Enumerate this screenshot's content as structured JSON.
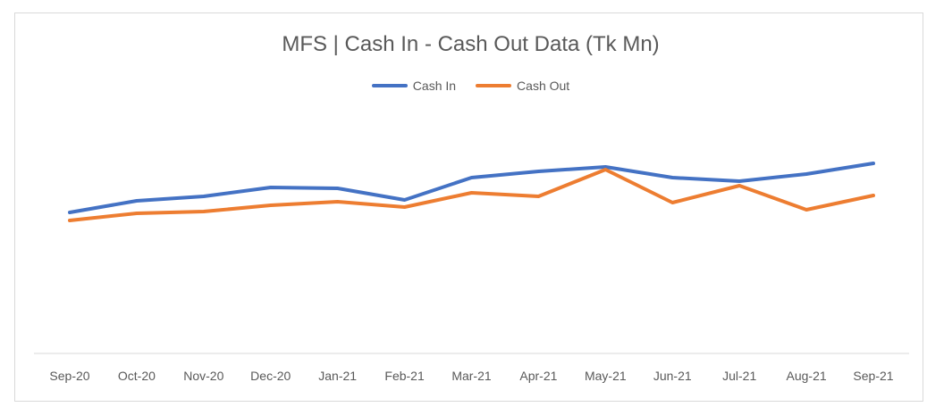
{
  "chart_data": {
    "type": "line",
    "title": "MFS | Cash In - Cash Out Data (Tk Mn)",
    "categories": [
      "Sep-20",
      "Oct-20",
      "Nov-20",
      "Dec-20",
      "Jan-21",
      "Feb-21",
      "Mar-21",
      "Apr-21",
      "May-21",
      "Jun-21",
      "Jul-21",
      "Aug-21",
      "Sep-21"
    ],
    "series": [
      {
        "name": "Cash In",
        "color": "#4472C4",
        "values": [
          238,
          225,
          220,
          210,
          211,
          224,
          199,
          192,
          187,
          199,
          203,
          195,
          183
        ]
      },
      {
        "name": "Cash Out",
        "color": "#ED7D31",
        "values": [
          247,
          239,
          237,
          230,
          226,
          232,
          216,
          220,
          190,
          227,
          208,
          235,
          219
        ]
      }
    ],
    "ylim": [
      395,
      0
    ],
    "grid": false,
    "legend_position": "top"
  }
}
